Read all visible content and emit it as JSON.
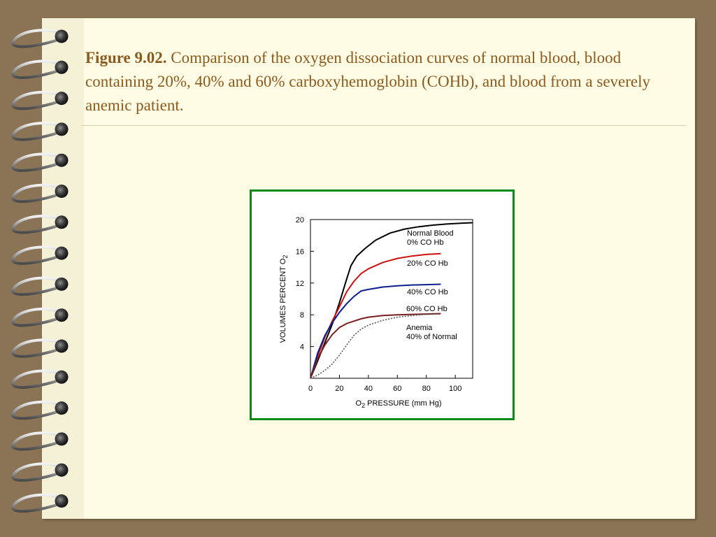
{
  "caption": {
    "figure_label": "Figure 9.02.",
    "text": "Comparison of the oxygen dissociation curves of normal blood, blood containing 20%, 40% and 60% carboxyhemoglobin (COHb), and blood from a severely anemic patient."
  },
  "colors": {
    "background": "#8b7355",
    "paper": "#fdfbe3",
    "caption_text": "#8b5a1e",
    "frame_border": "#0c8a17"
  },
  "chart_data": {
    "type": "line",
    "xlabel_main": "O",
    "xlabel_sub": "2",
    "xlabel_rest": " PRESSURE (mm Hg)",
    "ylabel_main": "VOLUMES PERCENT O",
    "ylabel_sub": "2",
    "xlim": [
      0,
      112
    ],
    "ylim": [
      0,
      20
    ],
    "x_ticks": [
      0,
      20,
      40,
      60,
      80,
      100
    ],
    "y_ticks": [
      4,
      8,
      12,
      16,
      20
    ],
    "grid": false,
    "series": [
      {
        "name": "Normal Blood",
        "name2": "0% CO Hb",
        "color": "#000000",
        "dash": "",
        "points": [
          [
            0,
            0
          ],
          [
            5,
            2.2
          ],
          [
            10,
            4.5
          ],
          [
            15,
            6.8
          ],
          [
            20,
            9.5
          ],
          [
            25,
            12.5
          ],
          [
            28,
            14.2
          ],
          [
            32,
            15.4
          ],
          [
            38,
            16.4
          ],
          [
            45,
            17.4
          ],
          [
            55,
            18.3
          ],
          [
            65,
            18.8
          ],
          [
            75,
            19.1
          ],
          [
            85,
            19.3
          ],
          [
            95,
            19.45
          ],
          [
            105,
            19.55
          ],
          [
            112,
            19.6
          ]
        ]
      },
      {
        "name": "20% CO Hb",
        "color": "#cc1111",
        "dash": "",
        "points": [
          [
            0,
            0
          ],
          [
            5,
            2.8
          ],
          [
            10,
            5.2
          ],
          [
            15,
            7.2
          ],
          [
            20,
            9.0
          ],
          [
            25,
            10.9
          ],
          [
            30,
            12.2
          ],
          [
            35,
            13.2
          ],
          [
            40,
            13.8
          ],
          [
            50,
            14.6
          ],
          [
            60,
            15.1
          ],
          [
            70,
            15.4
          ],
          [
            80,
            15.6
          ],
          [
            90,
            15.7
          ]
        ]
      },
      {
        "name": "40% CO Hb",
        "color": "#0c1f8f",
        "dash": "",
        "points": [
          [
            0,
            0
          ],
          [
            5,
            3.2
          ],
          [
            10,
            5.4
          ],
          [
            15,
            7.0
          ],
          [
            20,
            8.3
          ],
          [
            25,
            9.4
          ],
          [
            30,
            10.3
          ],
          [
            35,
            11.0
          ],
          [
            40,
            11.2
          ],
          [
            50,
            11.5
          ],
          [
            60,
            11.65
          ],
          [
            70,
            11.75
          ],
          [
            80,
            11.8
          ],
          [
            90,
            11.85
          ]
        ]
      },
      {
        "name": "60% CO Hb",
        "color": "#7a1f1f",
        "dash": "",
        "points": [
          [
            0,
            0
          ],
          [
            5,
            2.5
          ],
          [
            10,
            4.2
          ],
          [
            15,
            5.5
          ],
          [
            20,
            6.4
          ],
          [
            25,
            6.9
          ],
          [
            30,
            7.2
          ],
          [
            35,
            7.5
          ],
          [
            40,
            7.7
          ],
          [
            50,
            7.9
          ],
          [
            60,
            8.0
          ],
          [
            70,
            8.05
          ],
          [
            80,
            8.1
          ],
          [
            90,
            8.15
          ]
        ]
      },
      {
        "name": "Anemia",
        "name2": "40% of Normal",
        "color": "#555555",
        "dash": "2,2",
        "points": [
          [
            0,
            0
          ],
          [
            5,
            0.4
          ],
          [
            10,
            1.0
          ],
          [
            15,
            1.8
          ],
          [
            20,
            2.9
          ],
          [
            25,
            4.2
          ],
          [
            30,
            5.4
          ],
          [
            35,
            6.2
          ],
          [
            40,
            6.7
          ],
          [
            50,
            7.3
          ],
          [
            60,
            7.7
          ],
          [
            70,
            7.9
          ],
          [
            80,
            8.05
          ],
          [
            90,
            8.1
          ]
        ]
      }
    ]
  }
}
